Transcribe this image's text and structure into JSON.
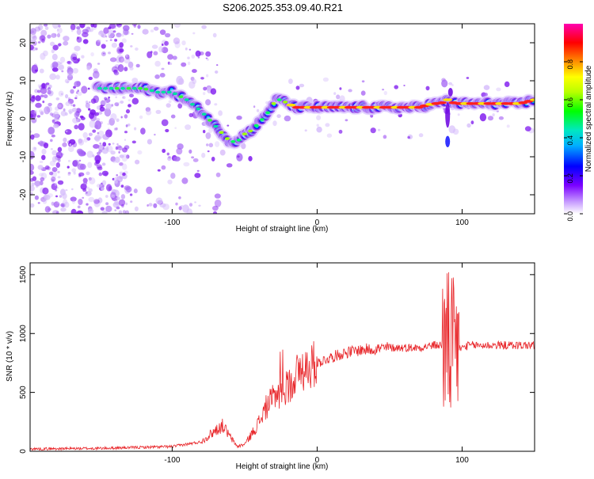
{
  "title": "S206.2025.353.09.40.R21",
  "chart_data": [
    {
      "type": "heatmap",
      "name": "spectrogram",
      "xlabel": "Height of straight line (km)",
      "ylabel": "Frequency (Hz)",
      "xlim": [
        -198,
        150
      ],
      "ylim": [
        -25,
        25
      ],
      "x_ticks": [
        -100,
        0,
        100
      ],
      "y_ticks": [
        -20,
        -10,
        0,
        10,
        20
      ],
      "ridge": {
        "x": [
          -150,
          -140,
          -130,
          -120,
          -110,
          -100,
          -90,
          -80,
          -75,
          -70,
          -65,
          -60,
          -55,
          -50,
          -45,
          -40,
          -35,
          -30,
          -28,
          -25,
          -20,
          -15,
          -10,
          -5,
          0,
          5,
          10,
          20,
          30,
          40,
          50,
          60,
          70,
          80,
          85,
          90,
          95,
          100,
          110,
          120,
          130,
          140,
          150
        ],
        "freq": [
          8,
          8,
          8,
          8,
          7,
          7,
          5,
          2,
          0,
          -2,
          -4,
          -6,
          -6,
          -4,
          -3,
          -1,
          1,
          4,
          5,
          5,
          4,
          3,
          3,
          3,
          3,
          3,
          3,
          3,
          3,
          3,
          3,
          3,
          3,
          4,
          4,
          5,
          4,
          4,
          4,
          4,
          4,
          4,
          5
        ]
      },
      "colorbar": {
        "label": "Normalized spectral amplitude",
        "ticks": [
          "0.0",
          "0.2",
          "0.4",
          "0.6",
          "0.8"
        ],
        "range": [
          0,
          1
        ]
      }
    },
    {
      "type": "line",
      "name": "snr",
      "xlabel": "Height of straight line (km)",
      "ylabel": "SNR (10 * v/v)",
      "xlim": [
        -198,
        150
      ],
      "ylim": [
        0,
        1600
      ],
      "x_ticks": [
        -100,
        0,
        100
      ],
      "y_ticks": [
        0,
        500,
        1000,
        1500
      ],
      "color": "#e8262a",
      "envelope": {
        "x": [
          -198,
          -150,
          -100,
          -80,
          -70,
          -65,
          -60,
          -55,
          -50,
          -45,
          -40,
          -35,
          -30,
          -25,
          -20,
          -15,
          -10,
          -5,
          0,
          10,
          20,
          30,
          40,
          50,
          60,
          70,
          80,
          85,
          90,
          95,
          100,
          105,
          110,
          120,
          130,
          140,
          150
        ],
        "values": [
          20,
          25,
          40,
          80,
          180,
          220,
          120,
          40,
          60,
          150,
          250,
          380,
          450,
          500,
          550,
          650,
          700,
          720,
          750,
          800,
          840,
          860,
          870,
          880,
          880,
          880,
          900,
          900,
          900,
          850,
          880,
          900,
          900,
          900,
          900,
          900,
          900
        ]
      }
    }
  ]
}
